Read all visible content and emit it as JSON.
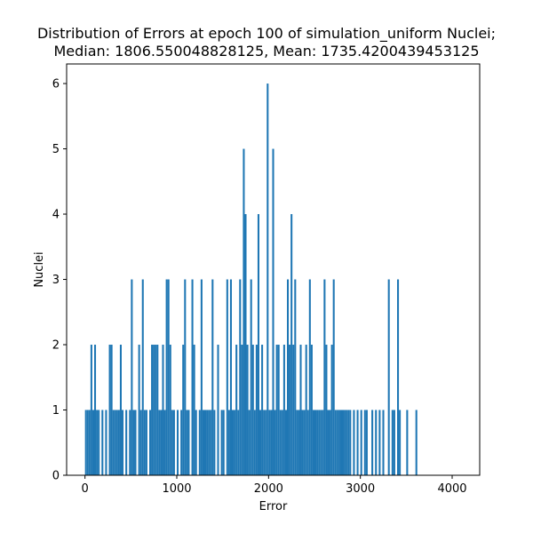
{
  "chart_data": {
    "type": "bar",
    "title_line1": "Distribution of Errors at epoch 100 of simulation_uniform Nuclei;",
    "title_line2": "Median: 1806.550048828125, Mean: 1735.4200439453125",
    "xlabel": "Error",
    "ylabel": "Nuclei",
    "xlim": [
      -200,
      4300
    ],
    "ylim": [
      0,
      6.3
    ],
    "xticks": [
      0,
      1000,
      2000,
      3000,
      4000
    ],
    "yticks": [
      0,
      1,
      2,
      3,
      4,
      5,
      6
    ],
    "bar_color": "#1f77b4",
    "bin_width": 20,
    "bins": [
      [
        0,
        1
      ],
      [
        20,
        1
      ],
      [
        40,
        1
      ],
      [
        60,
        2
      ],
      [
        80,
        1
      ],
      [
        100,
        2
      ],
      [
        120,
        1
      ],
      [
        140,
        1
      ],
      [
        180,
        1
      ],
      [
        220,
        1
      ],
      [
        260,
        2
      ],
      [
        280,
        2
      ],
      [
        300,
        1
      ],
      [
        320,
        1
      ],
      [
        340,
        1
      ],
      [
        360,
        1
      ],
      [
        380,
        2
      ],
      [
        400,
        1
      ],
      [
        440,
        1
      ],
      [
        480,
        1
      ],
      [
        500,
        3
      ],
      [
        520,
        1
      ],
      [
        540,
        1
      ],
      [
        580,
        2
      ],
      [
        600,
        1
      ],
      [
        620,
        3
      ],
      [
        640,
        1
      ],
      [
        660,
        1
      ],
      [
        700,
        1
      ],
      [
        720,
        2
      ],
      [
        740,
        2
      ],
      [
        760,
        2
      ],
      [
        780,
        2
      ],
      [
        800,
        1
      ],
      [
        820,
        1
      ],
      [
        840,
        2
      ],
      [
        860,
        1
      ],
      [
        880,
        3
      ],
      [
        900,
        3
      ],
      [
        920,
        2
      ],
      [
        940,
        1
      ],
      [
        960,
        1
      ],
      [
        1000,
        1
      ],
      [
        1040,
        1
      ],
      [
        1060,
        2
      ],
      [
        1080,
        3
      ],
      [
        1100,
        1
      ],
      [
        1120,
        1
      ],
      [
        1160,
        3
      ],
      [
        1180,
        2
      ],
      [
        1200,
        1
      ],
      [
        1240,
        1
      ],
      [
        1260,
        3
      ],
      [
        1280,
        1
      ],
      [
        1300,
        1
      ],
      [
        1320,
        1
      ],
      [
        1340,
        1
      ],
      [
        1360,
        1
      ],
      [
        1380,
        3
      ],
      [
        1400,
        1
      ],
      [
        1440,
        2
      ],
      [
        1480,
        1
      ],
      [
        1500,
        1
      ],
      [
        1540,
        3
      ],
      [
        1560,
        1
      ],
      [
        1580,
        3
      ],
      [
        1600,
        1
      ],
      [
        1620,
        1
      ],
      [
        1640,
        2
      ],
      [
        1660,
        1
      ],
      [
        1680,
        3
      ],
      [
        1700,
        2
      ],
      [
        1720,
        5
      ],
      [
        1740,
        4
      ],
      [
        1760,
        2
      ],
      [
        1780,
        1
      ],
      [
        1800,
        3
      ],
      [
        1820,
        2
      ],
      [
        1840,
        1
      ],
      [
        1860,
        2
      ],
      [
        1880,
        4
      ],
      [
        1900,
        1
      ],
      [
        1920,
        2
      ],
      [
        1940,
        1
      ],
      [
        1960,
        1
      ],
      [
        1980,
        6
      ],
      [
        2000,
        1
      ],
      [
        2020,
        1
      ],
      [
        2040,
        5
      ],
      [
        2060,
        1
      ],
      [
        2080,
        2
      ],
      [
        2100,
        2
      ],
      [
        2120,
        1
      ],
      [
        2140,
        1
      ],
      [
        2160,
        2
      ],
      [
        2180,
        1
      ],
      [
        2200,
        3
      ],
      [
        2220,
        2
      ],
      [
        2240,
        4
      ],
      [
        2260,
        2
      ],
      [
        2280,
        3
      ],
      [
        2300,
        1
      ],
      [
        2320,
        1
      ],
      [
        2340,
        2
      ],
      [
        2360,
        1
      ],
      [
        2380,
        1
      ],
      [
        2400,
        2
      ],
      [
        2420,
        1
      ],
      [
        2440,
        3
      ],
      [
        2460,
        2
      ],
      [
        2480,
        1
      ],
      [
        2500,
        1
      ],
      [
        2520,
        1
      ],
      [
        2540,
        1
      ],
      [
        2560,
        1
      ],
      [
        2580,
        1
      ],
      [
        2600,
        3
      ],
      [
        2620,
        2
      ],
      [
        2640,
        1
      ],
      [
        2660,
        1
      ],
      [
        2680,
        2
      ],
      [
        2700,
        3
      ],
      [
        2720,
        1
      ],
      [
        2740,
        1
      ],
      [
        2760,
        1
      ],
      [
        2780,
        1
      ],
      [
        2800,
        1
      ],
      [
        2820,
        1
      ],
      [
        2840,
        1
      ],
      [
        2860,
        1
      ],
      [
        2880,
        1
      ],
      [
        2920,
        1
      ],
      [
        2960,
        1
      ],
      [
        3000,
        1
      ],
      [
        3040,
        1
      ],
      [
        3060,
        1
      ],
      [
        3120,
        1
      ],
      [
        3160,
        1
      ],
      [
        3200,
        1
      ],
      [
        3240,
        1
      ],
      [
        3300,
        3
      ],
      [
        3340,
        1
      ],
      [
        3360,
        1
      ],
      [
        3400,
        3
      ],
      [
        3420,
        1
      ],
      [
        3500,
        1
      ],
      [
        3600,
        1
      ]
    ]
  }
}
